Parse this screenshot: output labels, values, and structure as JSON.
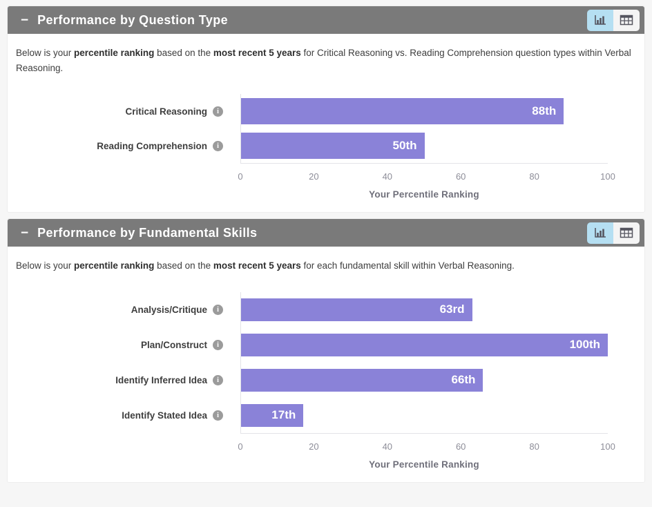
{
  "colors": {
    "header_bg": "#7a7a7a",
    "bar": "#8a82d8",
    "toggle_active_bg": "#b5dff2",
    "value_label": "#ffffff"
  },
  "panels": [
    {
      "collapse_label": "−",
      "title": "Performance by Question Type",
      "toolbar": {
        "chart_view_icon": "bar-chart-icon",
        "table_view_icon": "table-icon",
        "active_view": "chart"
      },
      "description_segments": [
        {
          "text": "Below is your ",
          "bold": false
        },
        {
          "text": "percentile ranking",
          "bold": true
        },
        {
          "text": " based on the ",
          "bold": false
        },
        {
          "text": "most recent 5 years",
          "bold": true
        },
        {
          "text": " for Critical Reasoning vs. Reading Comprehension question types within Verbal Reasoning.",
          "bold": false
        }
      ]
    },
    {
      "collapse_label": "−",
      "title": "Performance by Fundamental Skills",
      "toolbar": {
        "chart_view_icon": "bar-chart-icon",
        "table_view_icon": "table-icon",
        "active_view": "chart"
      },
      "description_segments": [
        {
          "text": "Below is your ",
          "bold": false
        },
        {
          "text": "percentile ranking",
          "bold": true
        },
        {
          "text": " based on the ",
          "bold": false
        },
        {
          "text": "most recent 5 years",
          "bold": true
        },
        {
          "text": " for each fundamental skill within Verbal Reasoning.",
          "bold": false
        }
      ]
    }
  ],
  "chart_data": [
    {
      "type": "bar",
      "orientation": "horizontal",
      "categories": [
        "Critical Reasoning",
        "Reading Comprehension"
      ],
      "values": [
        88,
        50
      ],
      "value_labels": [
        "88th",
        "50th"
      ],
      "value_label_position": "inside-right",
      "xlabel": "Your Percentile Ranking",
      "xlim": [
        0,
        100
      ],
      "xticks": [
        "0",
        "20",
        "40",
        "60",
        "80",
        "100"
      ],
      "grid": false,
      "bar_color": "#8a82d8"
    },
    {
      "type": "bar",
      "orientation": "horizontal",
      "categories": [
        "Analysis/Critique",
        "Plan/Construct",
        "Identify Inferred Idea",
        "Identify Stated Idea"
      ],
      "values": [
        63,
        100,
        66,
        17
      ],
      "value_labels": [
        "63rd",
        "100th",
        "66th",
        "17th"
      ],
      "value_label_position": "inside-right",
      "xlabel": "Your Percentile Ranking",
      "xlim": [
        0,
        100
      ],
      "xticks": [
        "0",
        "20",
        "40",
        "60",
        "80",
        "100"
      ],
      "grid": false,
      "bar_color": "#8a82d8"
    }
  ]
}
